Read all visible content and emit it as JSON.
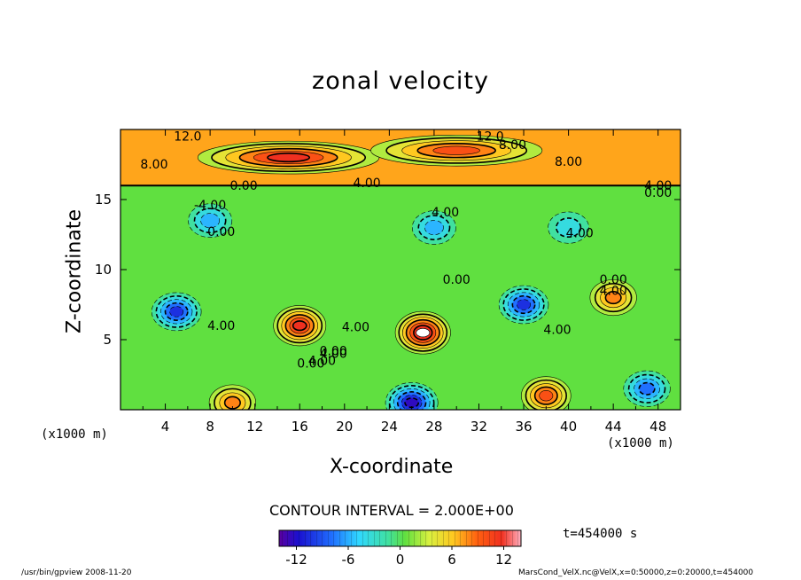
{
  "page": {
    "title": "zonal velocity",
    "xlabel": "X-coordinate",
    "ylabel": "Z-coordinate",
    "x_unit_left": "(x1000 m)",
    "x_unit_right": "(x1000 m)",
    "contour_interval": "CONTOUR INTERVAL = 2.000E+00",
    "time": "t=454000 s",
    "footer_left": "/usr/bin/gpview  2008-11-20",
    "footer_right": "MarsCond_VelX.nc@VelX,x=0:50000,z=0:20000,t=454000"
  },
  "colors": {
    "strong_negative": "#3a00a0",
    "zero": "#50d050",
    "strong_positive": "#ff3030",
    "max": "#ffffff"
  },
  "chart_data": {
    "type": "heatmap",
    "title": "zonal velocity",
    "xlabel": "X-coordinate",
    "ylabel": "Z-coordinate",
    "xlim": [
      0,
      50
    ],
    "ylim": [
      0,
      20
    ],
    "xticks": [
      "4",
      "8",
      "12",
      "16",
      "20",
      "24",
      "28",
      "32",
      "36",
      "40",
      "44",
      "48"
    ],
    "yticks": [
      "5",
      "10",
      "15"
    ],
    "contour_interval": 2.0,
    "colorbar": {
      "range": [
        -14,
        14
      ],
      "ticks": [
        "-12",
        "-6",
        "0",
        "6",
        "12"
      ]
    },
    "contour_labels": [
      "12.0",
      "12.0",
      "8.00",
      "8.00",
      "8.00",
      "0.00",
      "4.00",
      "4.00",
      "0.00",
      "-4.00",
      "4.00",
      "4.00",
      "0.00",
      "0.00",
      "0.00",
      "0.00",
      "4.00",
      "4.00",
      "0.00",
      "4.00",
      "4.00",
      "4.00",
      "4.00"
    ],
    "features": [
      {
        "x": 5,
        "z": 7,
        "value": -11
      },
      {
        "x": 16,
        "z": 6,
        "value": 12
      },
      {
        "x": 27,
        "z": 5.5,
        "value": 14
      },
      {
        "x": 26,
        "z": 0.5,
        "value": -13
      },
      {
        "x": 36,
        "z": 7.5,
        "value": -10
      },
      {
        "x": 38,
        "z": 1,
        "value": 10
      },
      {
        "x": 44,
        "z": 8,
        "value": 9
      },
      {
        "x": 47,
        "z": 1.5,
        "value": -9
      },
      {
        "x": 10,
        "z": 0.5,
        "value": 8
      },
      {
        "x": 15,
        "z": 18,
        "value": 12
      },
      {
        "x": 30,
        "z": 18.5,
        "value": 11
      },
      {
        "x": 8,
        "z": 13.5,
        "value": -7
      },
      {
        "x": 28,
        "z": 13,
        "value": -6
      },
      {
        "x": 40,
        "z": 13,
        "value": -5
      }
    ]
  }
}
